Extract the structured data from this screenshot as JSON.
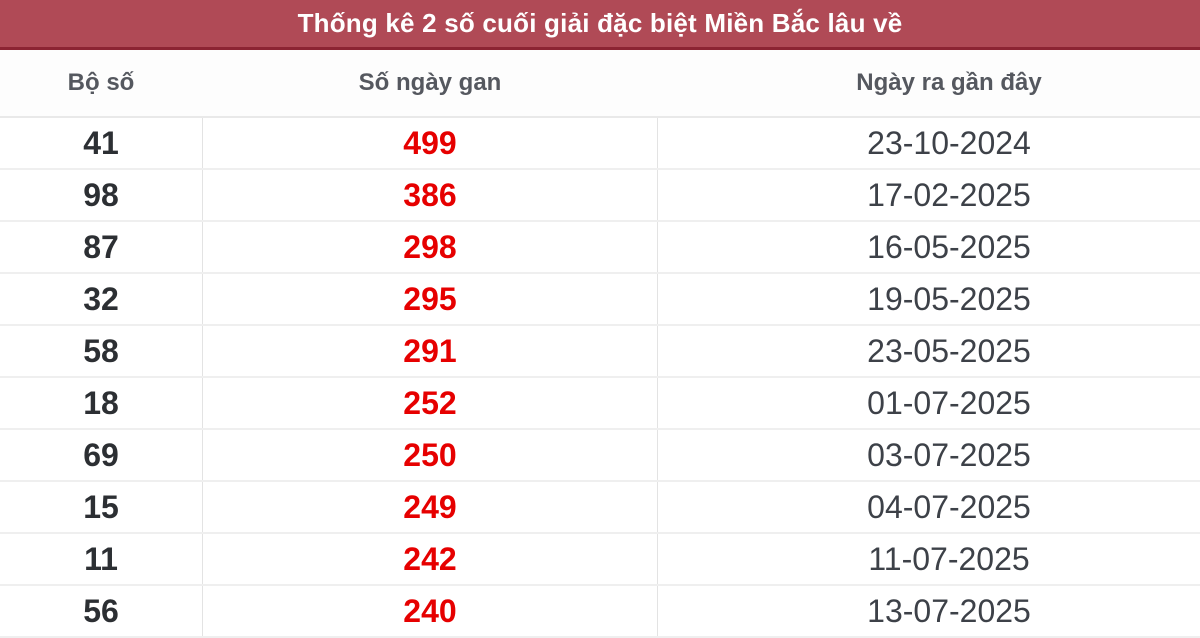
{
  "title": "Thống kê 2 số cuối giải đặc biệt Miền Bắc lâu về",
  "columns": {
    "bo_so": "Bộ số",
    "so_ngay_gan": "Số ngày gan",
    "ngay_ra": "Ngày ra gần đây"
  },
  "rows": [
    {
      "bo_so": "41",
      "so_ngay_gan": "499",
      "ngay_ra": "23-10-2024"
    },
    {
      "bo_so": "98",
      "so_ngay_gan": "386",
      "ngay_ra": "17-02-2025"
    },
    {
      "bo_so": "87",
      "so_ngay_gan": "298",
      "ngay_ra": "16-05-2025"
    },
    {
      "bo_so": "32",
      "so_ngay_gan": "295",
      "ngay_ra": "19-05-2025"
    },
    {
      "bo_so": "58",
      "so_ngay_gan": "291",
      "ngay_ra": "23-05-2025"
    },
    {
      "bo_so": "18",
      "so_ngay_gan": "252",
      "ngay_ra": "01-07-2025"
    },
    {
      "bo_so": "69",
      "so_ngay_gan": "250",
      "ngay_ra": "03-07-2025"
    },
    {
      "bo_so": "15",
      "so_ngay_gan": "249",
      "ngay_ra": "04-07-2025"
    },
    {
      "bo_so": "11",
      "so_ngay_gan": "242",
      "ngay_ra": "11-07-2025"
    },
    {
      "bo_so": "56",
      "so_ngay_gan": "240",
      "ngay_ra": "13-07-2025"
    }
  ],
  "colors": {
    "title_bg": "#b04a56",
    "title_border": "#8c2433",
    "gan_red": "#e60000"
  }
}
